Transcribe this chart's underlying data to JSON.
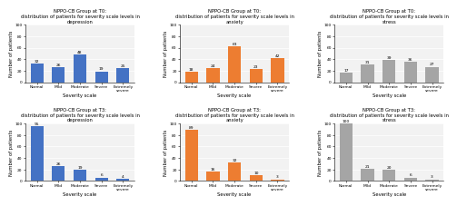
{
  "charts": [
    {
      "title": "NPPO-CB Group at T0:\ndistribution of patients for severity scale levels in\ndepression",
      "color": "#4472C4",
      "values": [
        32,
        26,
        48,
        19,
        25
      ],
      "ylim": [
        0,
        100
      ],
      "yticks": [
        0,
        20,
        40,
        60,
        80,
        100
      ]
    },
    {
      "title": "NPPO-CB Group at T0:\ndistribution of patients for severity scale levels in\nanxiety",
      "color": "#ED7D31",
      "values": [
        18,
        24,
        63,
        23,
        42
      ],
      "ylim": [
        0,
        100
      ],
      "yticks": [
        0,
        20,
        40,
        60,
        80,
        100
      ]
    },
    {
      "title": "NPPO-CB Group at T0:\ndistribution of patients for severity scale levels in\nstress",
      "color": "#A5A5A5",
      "values": [
        17,
        31,
        39,
        36,
        27
      ],
      "ylim": [
        0,
        100
      ],
      "yticks": [
        0,
        20,
        40,
        60,
        80,
        100
      ]
    },
    {
      "title": "NPPO-CB Group at T3:\ndistribution of patients for severity scale levels in\ndepression",
      "color": "#4472C4",
      "values": [
        95,
        26,
        19,
        6,
        4
      ],
      "ylim": [
        0,
        100
      ],
      "yticks": [
        0,
        20,
        40,
        60,
        80,
        100
      ]
    },
    {
      "title": "NPPO-CB Group at T3:\ndistribution of patients for severity scale levels in\nanxiety",
      "color": "#ED7D31",
      "values": [
        89,
        16,
        32,
        10,
        3
      ],
      "ylim": [
        0,
        100
      ],
      "yticks": [
        0,
        20,
        40,
        60,
        80,
        100
      ]
    },
    {
      "title": "NPPO-CB Group at T3:\ndistribution of patients for severity scale levels in\nstress",
      "color": "#A5A5A5",
      "values": [
        100,
        21,
        20,
        6,
        3
      ],
      "ylim": [
        0,
        100
      ],
      "yticks": [
        0,
        20,
        40,
        60,
        80,
        100
      ]
    }
  ],
  "categories": [
    "Normal",
    "Mild",
    "Moderate",
    "Severe",
    "Extremely\nsevere"
  ],
  "xlabel": "Severity scale",
  "ylabel": "Number of patients",
  "background_color": "#FFFFFF",
  "plot_bg_color": "#F2F2F2",
  "grid_color": "#FFFFFF",
  "label_fontsize": 3.8,
  "title_fontsize": 3.8,
  "tick_fontsize": 3.2,
  "bar_label_fontsize": 3.2
}
